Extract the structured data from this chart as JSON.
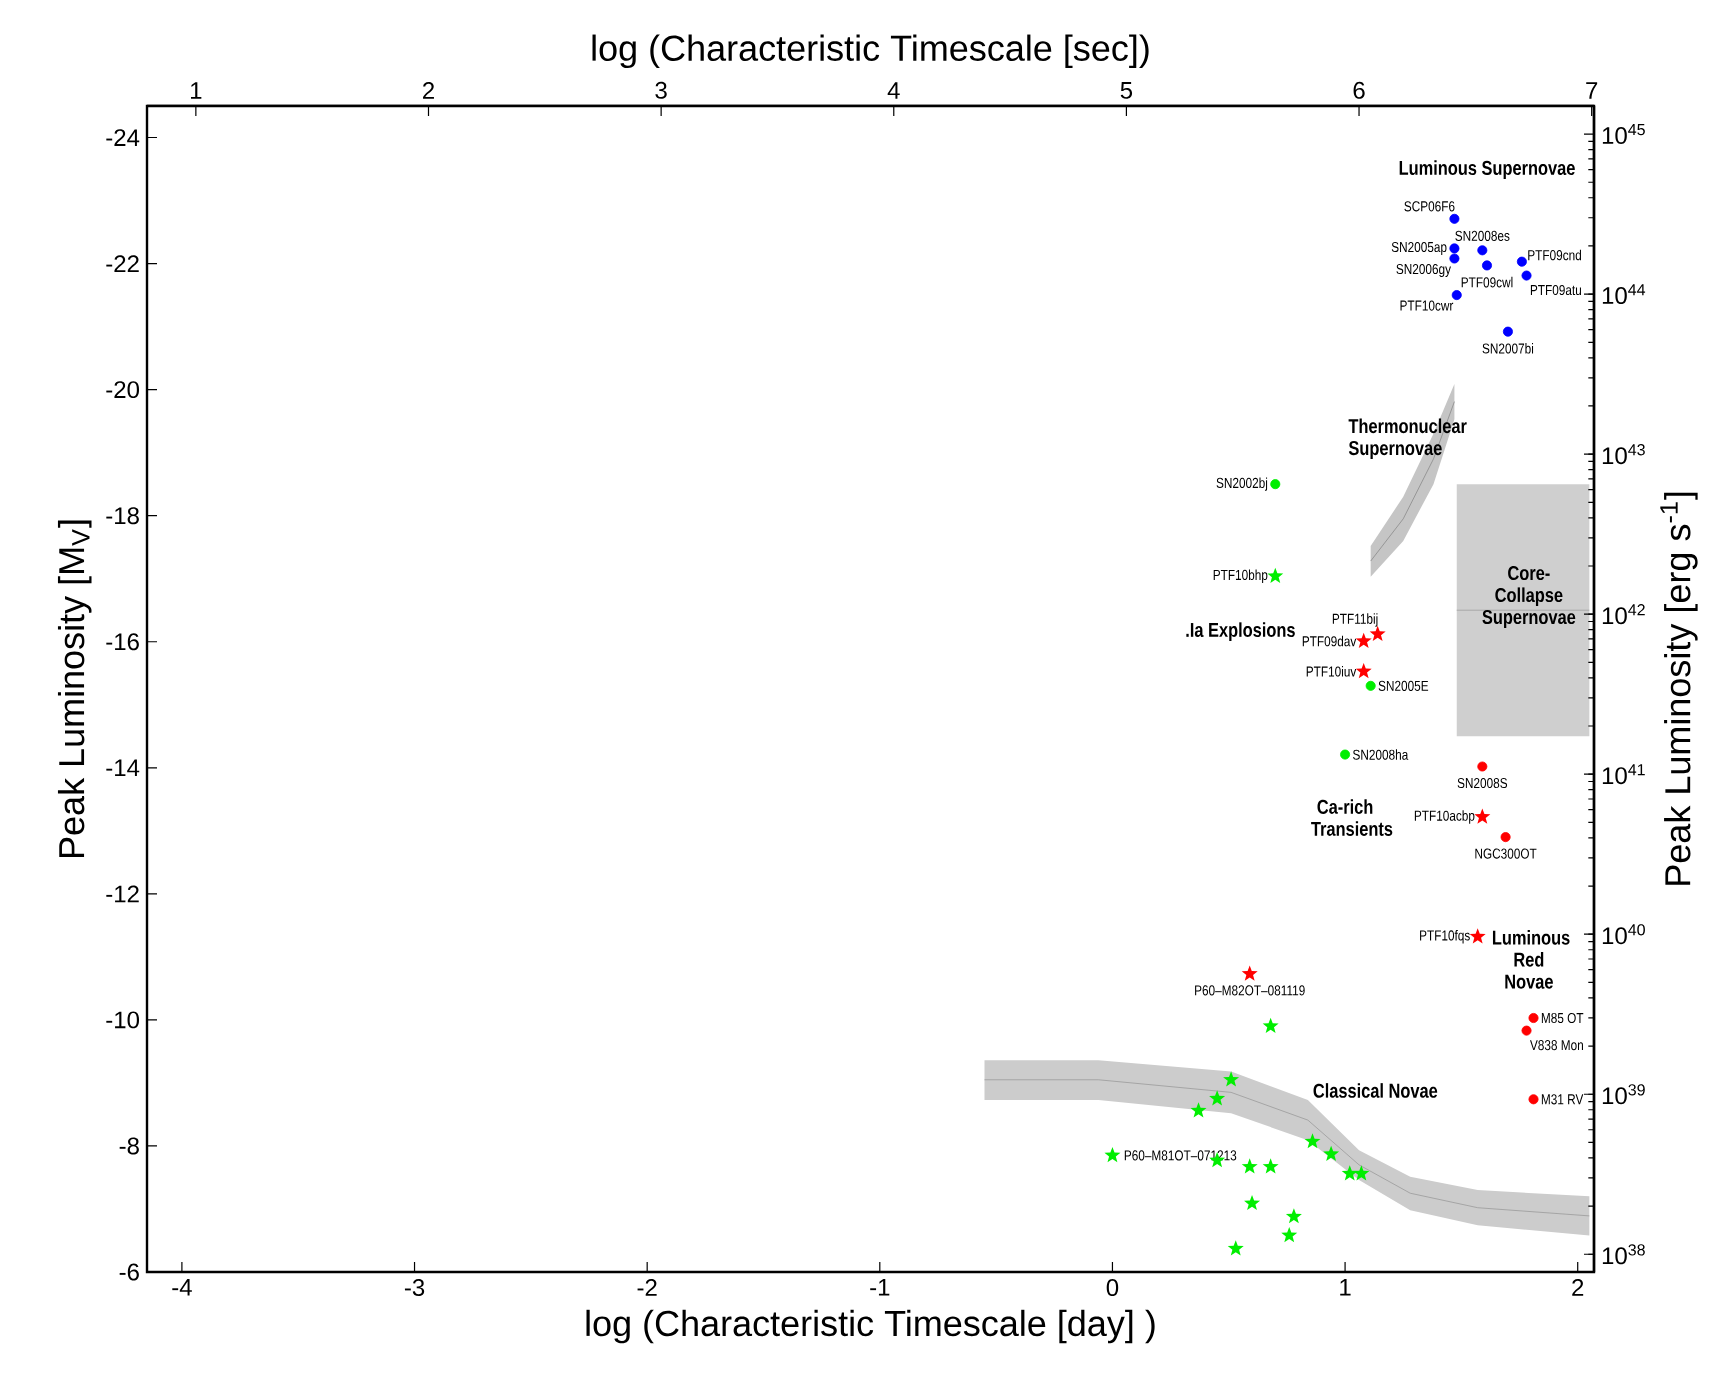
{
  "chart_data": {
    "type": "scatter",
    "xlabel": "log (Characteristic Timescale [day] )",
    "ylabel": "Peak Luminosity [M$_{V}$]",
    "x2label": "log (Characteristic Timescale  [sec])",
    "y2label": "Peak Luminosity [erg s$^{-1}$]",
    "xlim": [
      -4.15,
      2.07
    ],
    "xticks": [
      -4,
      -3,
      -2,
      -1,
      0,
      1,
      2
    ],
    "ylim": [
      -6,
      -24.5
    ],
    "yticks": [
      -24,
      -22,
      -20,
      -18,
      -16,
      -14,
      -12,
      -10,
      -8,
      -6
    ],
    "x2lim": [
      0.79,
      7.01
    ],
    "x2ticks": [
      1,
      2,
      3,
      4,
      5,
      6,
      7
    ],
    "y2lim": [
      7.76e+37,
      1.5e+45
    ],
    "y2ticks": [
      {
        "value": 1e+38,
        "label": "10$^{38}$"
      },
      {
        "value": 1e+39,
        "label": "10$^{39}$"
      },
      {
        "value": 1e+40,
        "label": "10$^{40}$"
      },
      {
        "value": 1e+41,
        "label": "10$^{41}$"
      },
      {
        "value": 1e+42,
        "label": "10$^{42}$"
      },
      {
        "value": 1e+43,
        "label": "10$^{43}$"
      },
      {
        "value": 1e+44,
        "label": "10$^{44}$"
      },
      {
        "value": 1e+45,
        "label": "10$^{45}$"
      }
    ],
    "log": "y2",
    "series": [
      {
        "type": "line",
        "color": "#9a9a9a",
        "x": [
          -0.55,
          -0.06,
          0.51,
          0.84,
          1.06,
          1.28,
          1.57,
          2.05
        ],
        "values": [
          -9.05,
          -9.05,
          -8.85,
          -8.41,
          -7.7,
          -7.25,
          -7.02,
          -6.89
        ],
        "upper": [
          -9.36,
          -9.36,
          -9.18,
          -8.73,
          -7.93,
          -7.51,
          -7.3,
          -7.2
        ],
        "lower": [
          -8.73,
          -8.73,
          -8.52,
          -8.09,
          -7.46,
          -6.98,
          -6.74,
          -6.58
        ]
      },
      {
        "type": "line",
        "color": "#8a8a8a",
        "x": [
          1.11,
          1.25,
          1.38,
          1.47
        ],
        "values": [
          -17.28,
          -17.95,
          -18.9,
          -19.81
        ],
        "upper": [
          -17.52,
          -18.3,
          -19.3,
          -20.09
        ],
        "lower": [
          -17.03,
          -17.6,
          -18.5,
          -19.53
        ]
      },
      {
        "type": "line",
        "color": "#a0a0a0",
        "x": [
          1.48,
          2.05
        ],
        "values": [
          -16.5,
          -16.5
        ],
        "upper": [
          -18.5,
          -18.5
        ],
        "lower": [
          -14.5,
          -14.5
        ]
      },
      {
        "color": "#0000ff",
        "marker": "circle",
        "x": [
          1.47,
          1.47,
          1.47,
          1.48,
          1.59,
          1.61,
          1.76,
          1.78,
          1.7
        ],
        "values": [
          -22.71,
          -22.24,
          -22.08,
          -21.5,
          -22.21,
          -21.97,
          -22.03,
          -21.81,
          -20.92
        ]
      },
      {
        "color": "#00ee00",
        "marker": "circle",
        "x": [
          0.7,
          1.11,
          1.0
        ],
        "values": [
          -18.5,
          -15.3,
          -14.21
        ]
      },
      {
        "color": "#00ee00",
        "marker": "star",
        "x": [
          0.7,
          0.68,
          0.0,
          0.51,
          0.45,
          0.37,
          0.45,
          0.59,
          0.68,
          0.86,
          0.94,
          1.02,
          1.07,
          0.6,
          0.78,
          0.76,
          0.53
        ],
        "values": [
          -17.04,
          -9.9,
          -7.85,
          -9.05,
          -8.75,
          -8.56,
          -7.77,
          -7.67,
          -7.67,
          -8.07,
          -7.87,
          -7.56,
          -7.56,
          -7.09,
          -6.88,
          -6.58,
          -6.37
        ]
      },
      {
        "color": "#ff0000",
        "marker": "circle",
        "x": [
          1.59,
          1.69,
          1.81,
          1.78,
          1.81
        ],
        "values": [
          -14.02,
          -12.9,
          -10.03,
          -9.83,
          -8.74
        ]
      },
      {
        "color": "#ff0000",
        "marker": "star",
        "x": [
          1.14,
          1.08,
          1.08,
          1.59,
          1.57,
          0.59
        ],
        "values": [
          -16.12,
          -16.01,
          -15.53,
          -13.22,
          -11.32,
          -10.73
        ]
      }
    ],
    "annotations": [
      "Luminous Supernovae",
      "Thermonuclear Supernovae",
      ".Ia Explosions",
      "Core-Collapse Supernovae",
      "Ca-rich Transients",
      "Luminous Red Novae",
      "Classical Novae",
      {
        "text": "SCP06F6",
        "x": 1.47,
        "y": -22.71
      },
      {
        "text": "SN2005ap",
        "x": 1.47,
        "y": -22.24
      },
      {
        "text": "SN2006gy",
        "x": 1.47,
        "y": -22.08
      },
      {
        "text": "PTF10cwr",
        "x": 1.48,
        "y": -21.5
      },
      {
        "text": "SN2008es",
        "x": 1.59,
        "y": -22.21
      },
      {
        "text": "PTF09cwl",
        "x": 1.61,
        "y": -21.97
      },
      {
        "text": "PTF09cnd",
        "x": 1.76,
        "y": -22.03
      },
      {
        "text": "PTF09atu",
        "x": 1.78,
        "y": -21.81
      },
      {
        "text": "SN2007bi",
        "x": 1.7,
        "y": -20.92
      },
      {
        "text": "SN2002bj",
        "x": 0.7,
        "y": -18.5
      },
      {
        "text": "PTF10bhp",
        "x": 0.7,
        "y": -17.04
      },
      {
        "text": "PTF11bij",
        "x": 1.14,
        "y": -16.12
      },
      {
        "text": "PTF09dav",
        "x": 1.08,
        "y": -16.01
      },
      {
        "text": "PTF10iuv",
        "x": 1.08,
        "y": -15.53
      },
      {
        "text": "SN2005E",
        "x": 1.11,
        "y": -15.3
      },
      {
        "text": "SN2008ha",
        "x": 1.0,
        "y": -14.21
      },
      {
        "text": "SN2008S",
        "x": 1.59,
        "y": -14.02
      },
      {
        "text": "PTF10acbp",
        "x": 1.59,
        "y": -13.22
      },
      {
        "text": "NGC300OT",
        "x": 1.69,
        "y": -12.9
      },
      {
        "text": "PTF10fqs",
        "x": 1.57,
        "y": -11.32
      },
      {
        "text": "P60–M82OT–081119",
        "x": 0.59,
        "y": -10.73
      },
      {
        "text": "M85 OT",
        "x": 1.81,
        "y": -10.03
      },
      {
        "text": "V838 Mon",
        "x": 1.78,
        "y": -9.83
      },
      {
        "text": "M31 RV",
        "x": 1.81,
        "y": -8.74
      },
      {
        "text": "P60–M81OT–071213",
        "x": 0.0,
        "y": -7.85
      }
    ]
  }
}
